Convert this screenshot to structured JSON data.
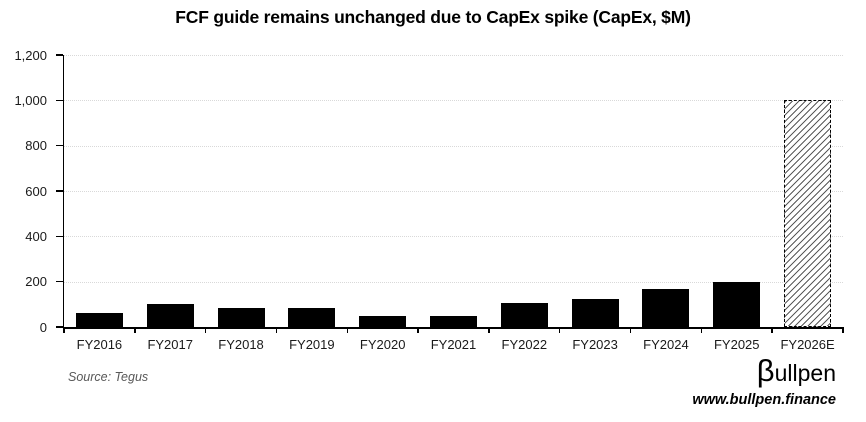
{
  "title": "FCF guide remains unchanged due to CapEx spike (CapEx, $M)",
  "source": "Source: Tegus",
  "logo": {
    "beta": "β",
    "rest": "ullpen",
    "url": "www.bullpen.finance"
  },
  "chart_data": {
    "type": "bar",
    "title": "FCF guide remains unchanged due to CapEx spike (CapEx, $M)",
    "categories": [
      "FY2016",
      "FY2017",
      "FY2018",
      "FY2019",
      "FY2020",
      "FY2021",
      "FY2022",
      "FY2023",
      "FY2024",
      "FY2025",
      "FY2026E"
    ],
    "values": [
      63,
      100,
      82,
      82,
      48,
      48,
      106,
      125,
      168,
      200,
      1000
    ],
    "forecast_index": 10,
    "xlabel": "",
    "ylabel": "",
    "ylim": [
      0,
      1200
    ],
    "yticks": [
      {
        "value": 0,
        "label": "0"
      },
      {
        "value": 200,
        "label": "200"
      },
      {
        "value": 400,
        "label": "400"
      },
      {
        "value": 600,
        "label": "600"
      },
      {
        "value": 800,
        "label": "800"
      },
      {
        "value": 1000,
        "label": "1,000"
      },
      {
        "value": 1200,
        "label": "1,200"
      }
    ],
    "grid": "horizontal-dotted",
    "legend": "none",
    "bar_color": "#000000",
    "forecast_bar_style": "diagonal-hatch-dashed-border",
    "gridline_color": "#d9d9d9",
    "axis_color": "#000000"
  }
}
